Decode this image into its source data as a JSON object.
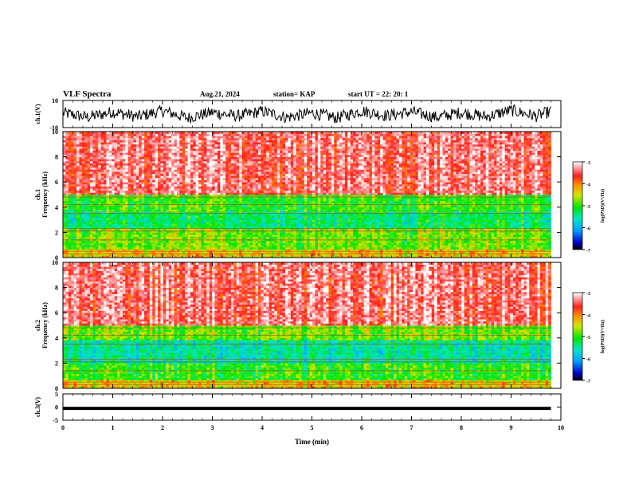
{
  "header": {
    "title": "VLF Spectra",
    "date": "Aug.21, 2024",
    "station": "station= KAP",
    "start": "start UT =  22: 20: 1"
  },
  "chart_data": [
    {
      "type": "line",
      "panel": "ch1-waveform",
      "ylabel": "ch.1(V)",
      "ylim": [
        -10,
        10
      ],
      "yticks": [
        "10",
        "-10"
      ],
      "xlim": [
        0,
        10
      ],
      "description_values": "noisy broadband signal oscillating roughly between -8 and 8 V",
      "x": [
        0,
        0.5,
        1,
        1.5,
        2,
        2.5,
        3,
        3.5,
        4,
        4.5,
        5,
        5.5,
        6,
        6.5,
        7,
        7.5,
        8,
        8.5,
        9,
        9.5,
        9.8
      ],
      "y": [
        2,
        -6,
        4,
        -5,
        6,
        -7,
        3,
        -4,
        5,
        -6,
        2,
        -7,
        6,
        -3,
        4,
        -6,
        3,
        -5,
        7,
        -4,
        5
      ]
    },
    {
      "type": "heatmap",
      "panel": "ch1-spectrogram",
      "ylabel": "ch.1\nFrequency (kHz)",
      "ylabel_lines": [
        "ch.1",
        "Frequency (kHz)"
      ],
      "ylim": [
        0,
        10
      ],
      "yticks": [
        "0",
        "2",
        "4",
        "6",
        "8",
        "10"
      ],
      "xlim": [
        0,
        10
      ],
      "data_extent_min": 9.8,
      "bands": [
        {
          "from": 0,
          "to": 0.6,
          "level": -4.3
        },
        {
          "from": 0.6,
          "to": 2.3,
          "level": -4.8
        },
        {
          "from": 2.3,
          "to": 3.6,
          "level": -5.3
        },
        {
          "from": 3.6,
          "to": 5.0,
          "level": -5.0
        },
        {
          "from": 5.0,
          "to": 10,
          "level": -3.4
        }
      ],
      "colorbar": {
        "min": -7,
        "max": -3,
        "ticks": [
          "-3",
          "-4",
          "-5",
          "-6",
          "-7"
        ],
        "label": "log(PSD)(V²/Hz)"
      }
    },
    {
      "type": "heatmap",
      "panel": "ch2-spectrogram",
      "ylabel": "ch.2\nFrequency (kHz)",
      "ylabel_lines": [
        "ch.2",
        "Frequency (kHz)"
      ],
      "ylim": [
        0,
        10
      ],
      "yticks": [
        "0",
        "2",
        "4",
        "6",
        "8",
        "10"
      ],
      "xlim": [
        0,
        10
      ],
      "data_extent_min": 9.8,
      "bands": [
        {
          "from": 0,
          "to": 0.6,
          "level": -4.3
        },
        {
          "from": 0.6,
          "to": 2.0,
          "level": -5.0
        },
        {
          "from": 2.0,
          "to": 3.8,
          "level": -5.5
        },
        {
          "from": 3.8,
          "to": 5.0,
          "level": -4.8
        },
        {
          "from": 5.0,
          "to": 10,
          "level": -3.4
        }
      ],
      "colorbar": {
        "min": -7,
        "max": -3,
        "ticks": [
          "-3",
          "-4",
          "-5",
          "-6",
          "-7"
        ],
        "label": "log(PSD)(V²/Hz)"
      }
    },
    {
      "type": "line",
      "panel": "ch3-waveform",
      "ylabel": "ch.3(V)",
      "ylim": [
        -5,
        5
      ],
      "yticks": [
        "5",
        "0",
        "-5"
      ],
      "xlim": [
        0,
        10
      ],
      "x": [
        0,
        9.8
      ],
      "y": [
        -0.5,
        -0.5
      ],
      "band_halfwidth": 0.6
    }
  ],
  "xaxis": {
    "label": "Time (min)",
    "ticks": [
      "0",
      "1",
      "2",
      "3",
      "4",
      "5",
      "6",
      "7",
      "8",
      "9",
      "10"
    ],
    "range": [
      0,
      10
    ]
  }
}
